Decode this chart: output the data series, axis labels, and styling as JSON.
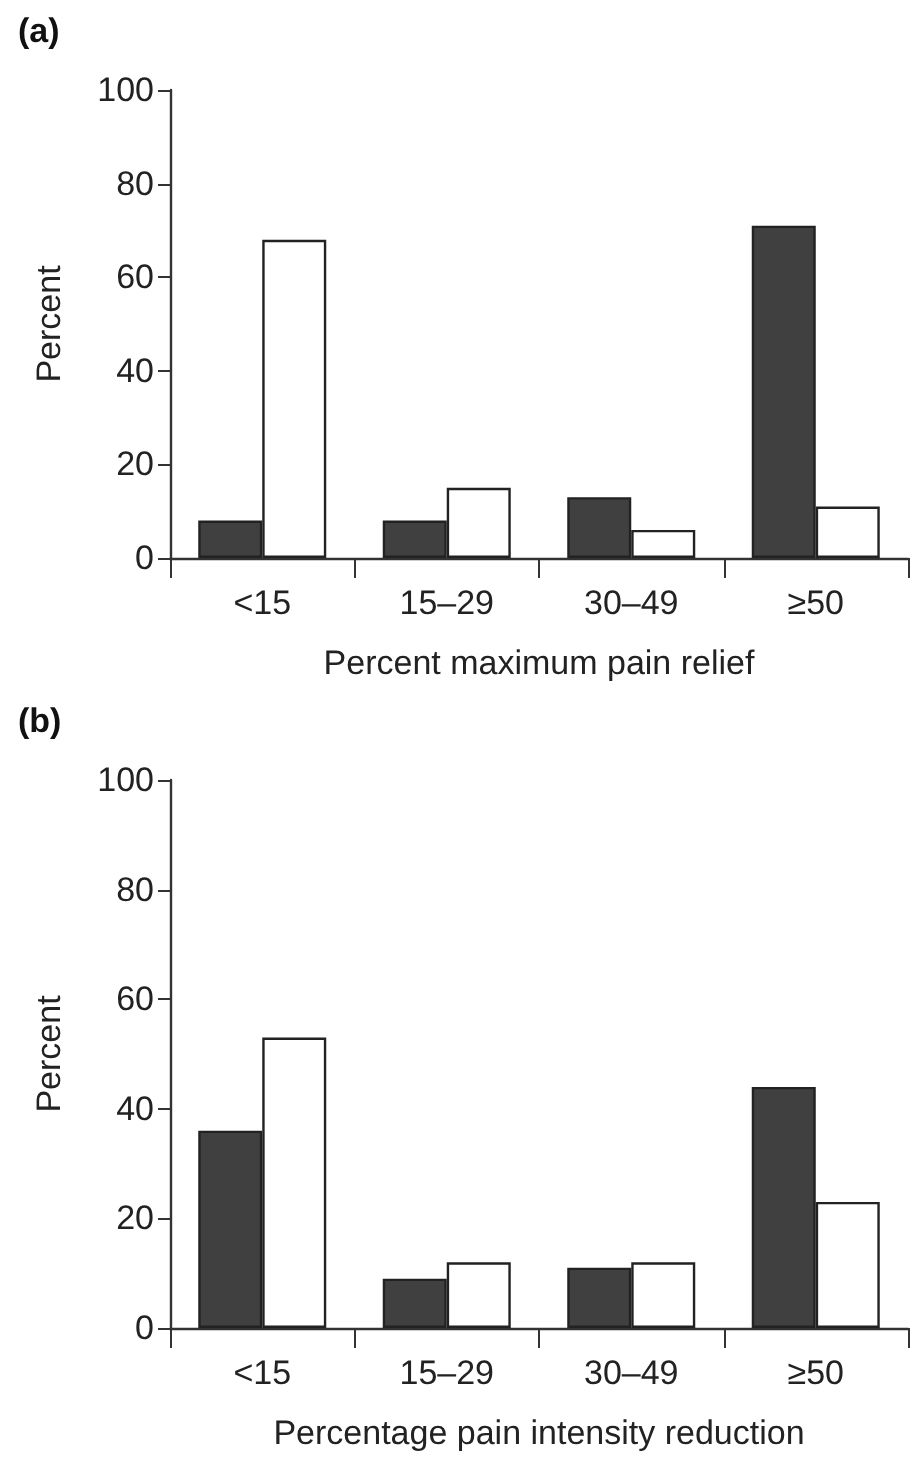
{
  "chart_data": [
    {
      "type": "bar",
      "title": "(a)",
      "xlabel": "Percent maximum pain relief",
      "ylabel": "Percent",
      "categories": [
        "<15",
        "15–29",
        "30–49",
        "≥50"
      ],
      "series": [
        {
          "color": "#404040",
          "values": [
            8,
            8,
            13,
            71
          ]
        },
        {
          "color": "#ffffff",
          "values": [
            68,
            15,
            6,
            11
          ]
        }
      ],
      "ylim": [
        0,
        100
      ],
      "yticks": [
        0,
        20,
        40,
        60,
        80,
        100
      ],
      "grid": false,
      "legend": false
    },
    {
      "type": "bar",
      "title": "(b)",
      "xlabel": "Percentage pain intensity reduction",
      "ylabel": "Percent",
      "categories": [
        "<15",
        "15–29",
        "30–49",
        "≥50"
      ],
      "series": [
        {
          "color": "#404040",
          "values": [
            36,
            9,
            11,
            44
          ]
        },
        {
          "color": "#ffffff",
          "values": [
            53,
            12,
            12,
            23
          ]
        }
      ],
      "ylim": [
        0,
        100
      ],
      "yticks": [
        0,
        20,
        40,
        60,
        80,
        100
      ],
      "grid": false,
      "legend": false
    }
  ]
}
